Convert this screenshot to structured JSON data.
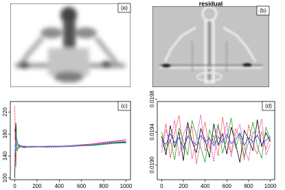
{
  "chart_data": [
    {
      "type": "image",
      "label": "(a)"
    },
    {
      "type": "image",
      "title": "residual",
      "label": "(b)"
    },
    {
      "type": "line",
      "label": "(c)",
      "x": [
        0,
        10,
        20,
        40,
        80,
        150,
        300,
        500,
        700,
        800,
        900,
        1000
      ],
      "xlim": [
        -40,
        1040
      ],
      "ylim": [
        97,
        239
      ],
      "xticks": [
        0,
        200,
        400,
        600,
        800,
        1000
      ],
      "yticks": [
        100,
        140,
        180,
        220
      ],
      "series": [
        {
          "color": "#000000",
          "values": [
            100,
            200,
            150,
            160,
            156,
            157,
            157,
            158,
            160,
            162,
            164,
            165
          ]
        },
        {
          "color": "#e41a1c",
          "values": [
            230,
            120,
            170,
            155,
            158,
            156,
            157,
            159,
            161,
            164,
            166,
            168
          ]
        },
        {
          "color": "#2ca02c",
          "values": [
            170,
            185,
            150,
            158,
            157,
            156,
            158,
            158,
            159,
            161,
            163,
            164
          ]
        },
        {
          "color": "#1f3fff",
          "values": [
            140,
            175,
            165,
            157,
            155,
            157,
            156,
            157,
            160,
            163,
            165,
            166
          ]
        },
        {
          "color": "#e0219e",
          "values": [
            190,
            160,
            160,
            159,
            158,
            157,
            157,
            159,
            162,
            165,
            167,
            170
          ]
        },
        {
          "color": "#17becf",
          "values": [
            160,
            150,
            168,
            156,
            157,
            158,
            158,
            158,
            160,
            162,
            164,
            167
          ]
        }
      ]
    },
    {
      "type": "line",
      "label": "(d)",
      "x": [
        0,
        40,
        80,
        120,
        160,
        200,
        240,
        280,
        320,
        360,
        400,
        440,
        480,
        520,
        560,
        600,
        640,
        680,
        720,
        760,
        800,
        840,
        880,
        920,
        960,
        1000
      ],
      "xlim": [
        -40,
        1040
      ],
      "ylim": [
        0.01882,
        0.01977
      ],
      "xticks": [
        0,
        200,
        400,
        600,
        800,
        1000
      ],
      "yticks": [
        {
          "value": 0.019,
          "label": "0.0190"
        },
        0.0194,
        0.0198
      ],
      "series": [
        {
          "color": "#000000",
          "values": [
            0.01935,
            0.01912,
            0.01948,
            0.01921,
            0.0194,
            0.01905,
            0.01952,
            0.01928,
            0.01915,
            0.01944,
            0.0193,
            0.01909,
            0.0195,
            0.01924,
            0.01938,
            0.01913,
            0.01946,
            0.01926,
            0.01903,
            0.01942,
            0.01931,
            0.01917,
            0.01955,
            0.01922,
            0.01939,
            0.01928
          ]
        },
        {
          "color": "#e41a1c",
          "values": [
            0.01922,
            0.0195,
            0.01908,
            0.01939,
            0.0196,
            0.01918,
            0.01933,
            0.01947,
            0.01901,
            0.01929,
            0.01952,
            0.0192,
            0.01936,
            0.01911,
            0.01958,
            0.01927,
            0.01915,
            0.01944,
            0.01932,
            0.01906,
            0.01949,
            0.01925,
            0.01913,
            0.01941,
            0.01919,
            0.01935
          ]
        },
        {
          "color": "#2ca02c",
          "values": [
            0.0194,
            0.01918,
            0.01931,
            0.01906,
            0.01945,
            0.01929,
            0.01912,
            0.01954,
            0.01936,
            0.01921,
            0.01903,
            0.01943,
            0.01926,
            0.0195,
            0.01914,
            0.01933,
            0.01957,
            0.0192,
            0.01938,
            0.0191,
            0.01928,
            0.01952,
            0.01923,
            0.01908,
            0.01946,
            0.0193
          ]
        },
        {
          "color": "#e0219e",
          "values": [
            0.01915,
            0.01943,
            0.01926,
            0.01955,
            0.01911,
            0.01937,
            0.01949,
            0.01907,
            0.01932,
            0.01961,
            0.01917,
            0.01934,
            0.01904,
            0.01947,
            0.01929,
            0.01952,
            0.0191,
            0.01937,
            0.01949,
            0.01921,
            0.01905,
            0.0194,
            0.01934,
            0.01956,
            0.01912,
            0.01925
          ]
        },
        {
          "color": "#1f3fff",
          "values": [
            0.0193,
            0.01925,
            0.01938,
            0.01927,
            0.01933,
            0.01921,
            0.01935,
            0.01929,
            0.01924,
            0.01936,
            0.01928,
            0.01932,
            0.01923,
            0.01934,
            0.01927,
            0.01937,
            0.01926,
            0.01931,
            0.01939,
            0.01924,
            0.01933,
            0.01928,
            0.01936,
            0.01925,
            0.0193,
            0.01934
          ]
        }
      ]
    }
  ]
}
